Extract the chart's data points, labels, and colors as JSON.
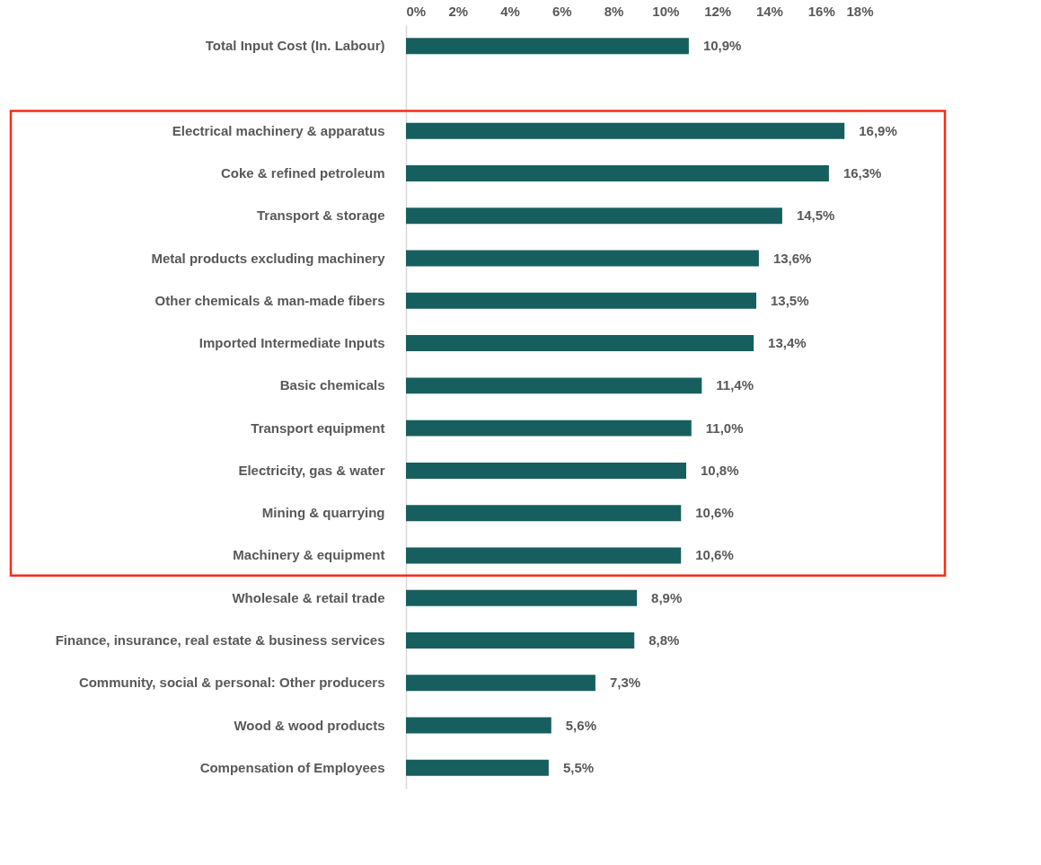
{
  "chart_data": {
    "type": "bar",
    "orientation": "horizontal",
    "categories": [
      "Total Input Cost (In. Labour)",
      null,
      "Electrical machinery & apparatus",
      "Coke & refined petroleum",
      "Transport & storage",
      "Metal products excluding machinery",
      "Other chemicals & man-made fibers",
      "Imported Intermediate Inputs",
      "Basic chemicals",
      "Transport equipment",
      "Electricity, gas & water",
      "Mining & quarrying",
      "Machinery & equipment",
      "Wholesale & retail trade",
      "Finance, insurance, real estate & business services",
      "Community, social & personal: Other producers",
      "Wood & wood products",
      "Compensation of Employees"
    ],
    "values": [
      10.9,
      null,
      16.9,
      16.3,
      14.5,
      13.6,
      13.5,
      13.4,
      11.4,
      11.0,
      10.8,
      10.6,
      10.6,
      8.9,
      8.8,
      7.3,
      5.6,
      5.5
    ],
    "value_labels": [
      "10,9%",
      null,
      "16,9%",
      "16,3%",
      "14,5%",
      "13,6%",
      "13,5%",
      "13,4%",
      "11,4%",
      "11,0%",
      "10,8%",
      "10,6%",
      "10,6%",
      "8,9%",
      "8,8%",
      "7,3%",
      "5,6%",
      "5,5%"
    ],
    "color": "#175f5f",
    "xlim": [
      0,
      18
    ],
    "xticks": [
      {
        "value": 0,
        "label": "0%"
      },
      {
        "value": 2,
        "label": "2%"
      },
      {
        "value": 4,
        "label": "4%"
      },
      {
        "value": 6,
        "label": "6%"
      },
      {
        "value": 8,
        "label": "8%"
      },
      {
        "value": 10,
        "label": "10%"
      },
      {
        "value": 12,
        "label": "12%"
      },
      {
        "value": 14,
        "label": "14%"
      },
      {
        "value": 16,
        "label": "16%"
      },
      {
        "value": 18,
        "label": "18%"
      }
    ],
    "grid": false
  }
}
